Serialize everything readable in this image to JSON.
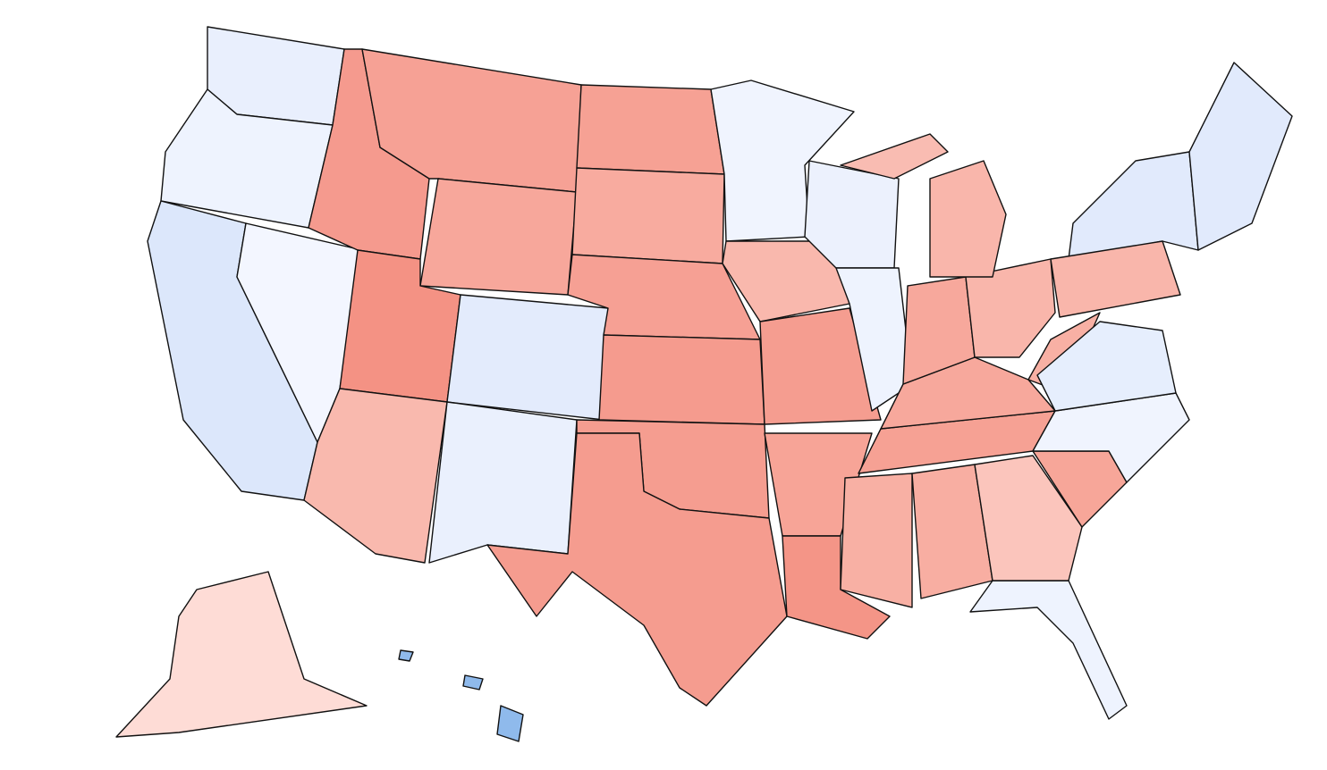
{
  "map": {
    "regions": [
      {
        "color": "#e9effd"
      },
      {
        "color": "#eef3fe"
      },
      {
        "color": "#dce7fb"
      },
      {
        "color": "#f3f6ff"
      },
      {
        "color": "#f59a8e"
      },
      {
        "color": "#f6a195"
      },
      {
        "color": "#f7a79b"
      },
      {
        "color": "#f49284"
      },
      {
        "color": "#f9b9ae"
      },
      {
        "color": "#e3ebfc"
      },
      {
        "color": "#eaf0fd"
      },
      {
        "color": "#f6a194"
      },
      {
        "color": "#f8ab9f"
      },
      {
        "color": "#f6a094"
      },
      {
        "color": "#f59b8e"
      },
      {
        "color": "#f59d90"
      },
      {
        "color": "#f59c8f"
      },
      {
        "color": "#f0f4fe"
      },
      {
        "color": "#f9b8ad"
      },
      {
        "color": "#f59d90"
      },
      {
        "color": "#f7a497"
      },
      {
        "color": "#f49587"
      },
      {
        "color": "#ecf1fd"
      },
      {
        "color": "#eef3fe"
      },
      {
        "color": "#f8b0a4"
      },
      {
        "color": "#f8ae a2"
      },
      {
        "color": "#f6a194"
      },
      {
        "color": "#f7a89c"
      },
      {
        "color": "#f7a89c"
      },
      {
        "color": "#f9b6ab"
      },
      {
        "color": "#f9b6ab"
      },
      {
        "color": "#f9bcb2"
      },
      {
        "color": "#eef3fe"
      },
      {
        "color": "#fbc5bc"
      },
      {
        "color": "#f7a699"
      },
      {
        "color": "#f0f4fe"
      },
      {
        "color": "#f8b0a4"
      },
      {
        "color": "#e6eefd"
      },
      {
        "color": "#e1eafc"
      },
      {
        "color": "#fedcd6"
      },
      {
        "color": "#8fbaec"
      },
      {
        "color": "#8fbaec"
      },
      {
        "color": "#8fbaec"
      }
    ]
  }
}
